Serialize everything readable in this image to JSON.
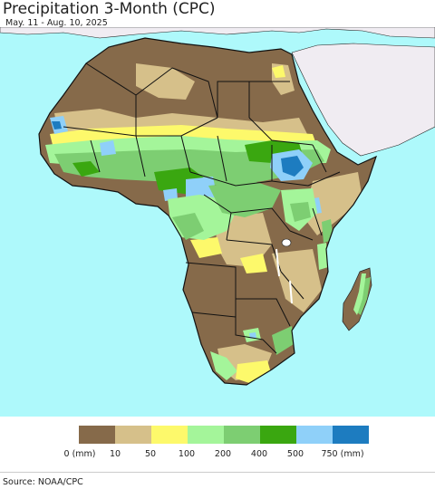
{
  "header": {
    "title": "Precipitation 3-Month (CPC)",
    "subtitle": "May. 11 - Aug. 10, 2025"
  },
  "legend": {
    "colors": [
      "#866a4a",
      "#d6c08a",
      "#fdf96b",
      "#a4f59a",
      "#7dce72",
      "#3aa710",
      "#8fd0f9",
      "#1d7cc0"
    ],
    "labels": [
      "0 (mm)",
      "10",
      "50",
      "100",
      "200",
      "400",
      "500",
      "750 (mm)"
    ]
  },
  "footer": {
    "source": "Source: NOAA/CPC"
  },
  "map_colors": {
    "ocean": "#aef9fb",
    "other_land": "#f0ecf2",
    "borders": "#111111"
  }
}
